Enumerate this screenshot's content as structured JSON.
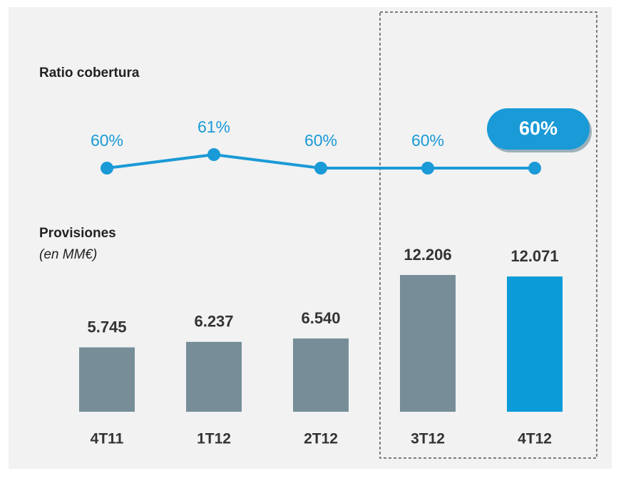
{
  "chart_data": [
    {
      "type": "line",
      "title": "Ratio cobertura",
      "categories": [
        "4T11",
        "1T12",
        "2T12",
        "3T12",
        "4T12"
      ],
      "values": [
        60,
        61,
        60,
        60,
        60
      ],
      "value_labels": [
        "60%",
        "61%",
        "60%",
        "60%",
        "60%"
      ],
      "color": "#1a9ad6"
    },
    {
      "type": "bar",
      "title": "Provisiones",
      "subtitle": "(en MM€)",
      "categories": [
        "4T11",
        "1T12",
        "2T12",
        "3T12",
        "4T12"
      ],
      "values": [
        5745,
        6237,
        6540,
        12206,
        12071
      ],
      "value_labels": [
        "5.745",
        "6.237",
        "6.540",
        "12.206",
        "12.071"
      ],
      "colors": [
        "#778e99",
        "#778e99",
        "#778e99",
        "#778e99",
        "#0a9bd8"
      ]
    }
  ]
}
